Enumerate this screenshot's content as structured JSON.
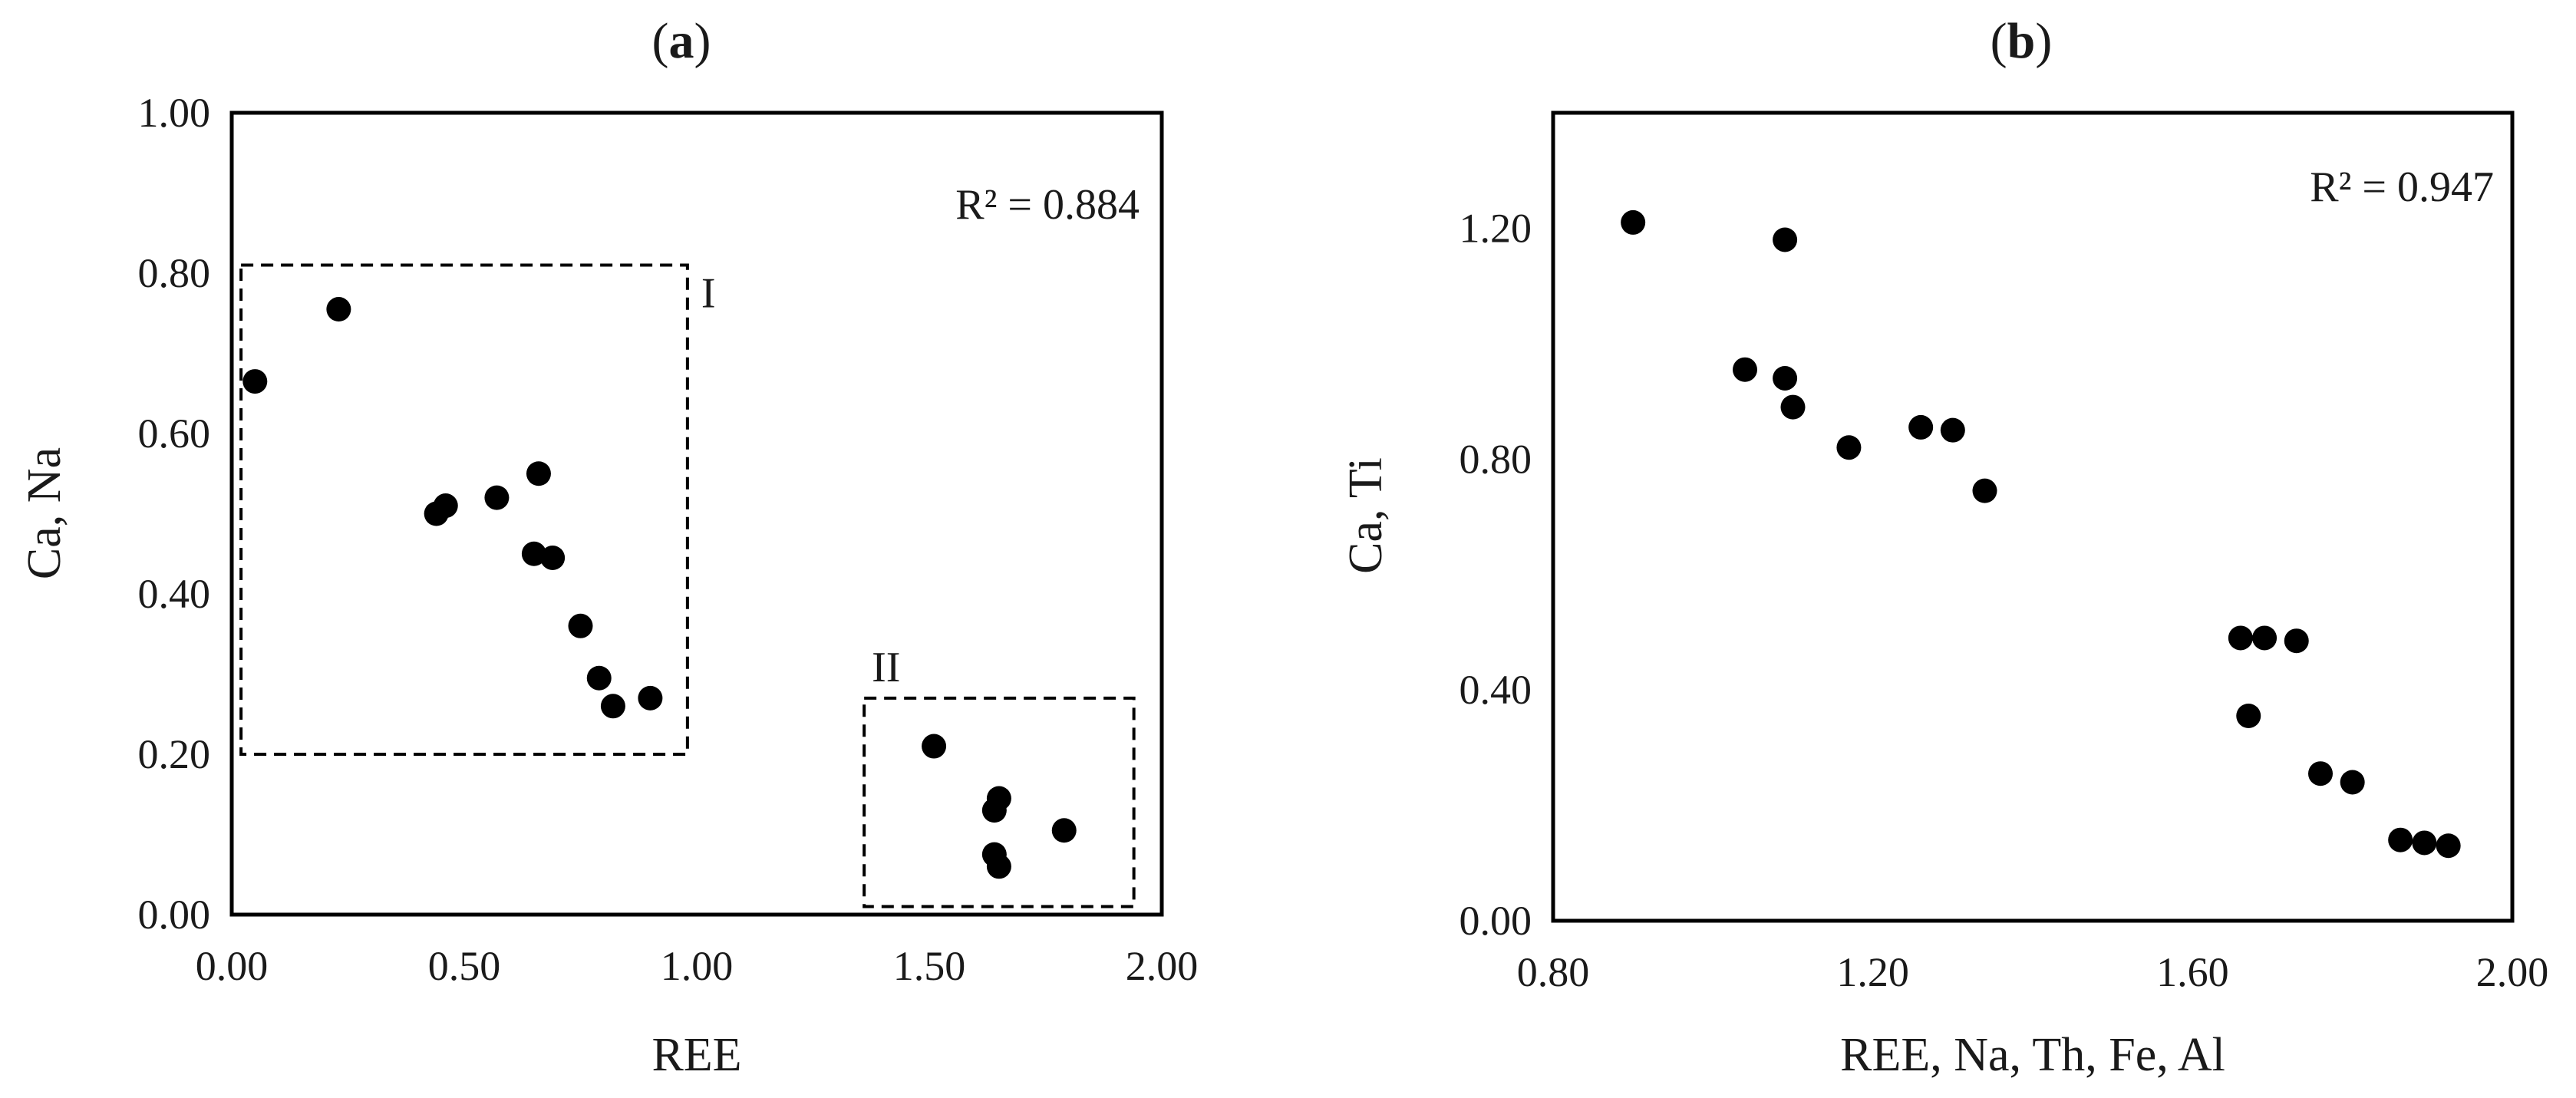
{
  "chart_data": [
    {
      "type": "scatter",
      "panel": "(a)",
      "panel_letter": "a",
      "xlabel": "REE",
      "ylabel": "Ca, Na",
      "xlim": [
        0,
        2
      ],
      "ylim": [
        0,
        1
      ],
      "x_ticks": [
        "0.00",
        "0.50",
        "1.00",
        "1.50",
        "2.00"
      ],
      "y_ticks": [
        "0.00",
        "0.20",
        "0.40",
        "0.60",
        "0.80",
        "1.00"
      ],
      "annotation": "R² = 0.884",
      "annotation_placement": "top-right",
      "grid": false,
      "legend": false,
      "point_color": "#000000",
      "groups": [
        {
          "label": "I",
          "x_range": [
            0.02,
            0.98
          ],
          "y_range": [
            0.2,
            0.81
          ],
          "style": "dashed box"
        },
        {
          "label": "II",
          "x_range": [
            1.36,
            1.94
          ],
          "y_range": [
            0.01,
            0.27
          ],
          "style": "dashed box"
        }
      ],
      "points": [
        {
          "x": 0.05,
          "y": 0.665
        },
        {
          "x": 0.23,
          "y": 0.755
        },
        {
          "x": 0.44,
          "y": 0.5
        },
        {
          "x": 0.46,
          "y": 0.51
        },
        {
          "x": 0.57,
          "y": 0.52
        },
        {
          "x": 0.65,
          "y": 0.45
        },
        {
          "x": 0.66,
          "y": 0.55
        },
        {
          "x": 0.69,
          "y": 0.445
        },
        {
          "x": 0.75,
          "y": 0.36
        },
        {
          "x": 0.79,
          "y": 0.295
        },
        {
          "x": 0.82,
          "y": 0.26
        },
        {
          "x": 0.9,
          "y": 0.27
        },
        {
          "x": 1.51,
          "y": 0.21
        },
        {
          "x": 1.64,
          "y": 0.13
        },
        {
          "x": 1.65,
          "y": 0.145
        },
        {
          "x": 1.64,
          "y": 0.075
        },
        {
          "x": 1.65,
          "y": 0.06
        },
        {
          "x": 1.79,
          "y": 0.105
        }
      ]
    },
    {
      "type": "scatter",
      "panel": "(b)",
      "panel_letter": "b",
      "xlabel": "REE, Na, Th, Fe, Al",
      "ylabel": "Ca, Ti",
      "xlim": [
        0.8,
        2.0
      ],
      "ylim": [
        0,
        1.4
      ],
      "x_ticks": [
        "0.80",
        "1.20",
        "1.60",
        "2.00"
      ],
      "y_ticks": [
        "0.00",
        "0.40",
        "0.80",
        "1.20"
      ],
      "annotation": "R² = 0.947",
      "annotation_placement": "top-right",
      "grid": false,
      "legend": false,
      "point_color": "#000000",
      "points": [
        {
          "x": 0.9,
          "y": 1.21
        },
        {
          "x": 1.04,
          "y": 0.955
        },
        {
          "x": 1.09,
          "y": 1.18
        },
        {
          "x": 1.09,
          "y": 0.94
        },
        {
          "x": 1.1,
          "y": 0.89
        },
        {
          "x": 1.17,
          "y": 0.82
        },
        {
          "x": 1.26,
          "y": 0.855
        },
        {
          "x": 1.3,
          "y": 0.85
        },
        {
          "x": 1.34,
          "y": 0.745
        },
        {
          "x": 1.66,
          "y": 0.49
        },
        {
          "x": 1.69,
          "y": 0.49
        },
        {
          "x": 1.73,
          "y": 0.485
        },
        {
          "x": 1.67,
          "y": 0.355
        },
        {
          "x": 1.76,
          "y": 0.255
        },
        {
          "x": 1.8,
          "y": 0.24
        },
        {
          "x": 1.86,
          "y": 0.14
        },
        {
          "x": 1.89,
          "y": 0.135
        },
        {
          "x": 1.92,
          "y": 0.13
        }
      ]
    }
  ]
}
